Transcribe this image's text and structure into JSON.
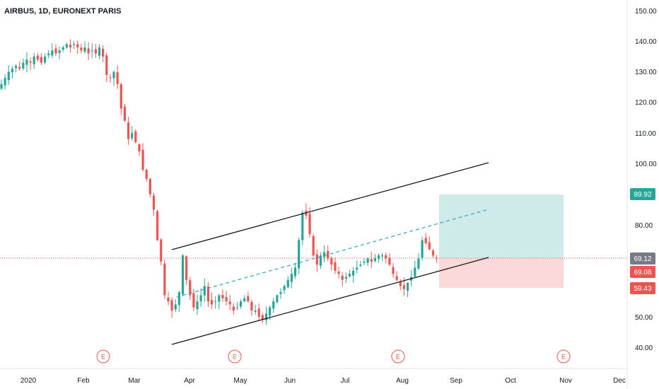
{
  "chart_data": {
    "type": "candlestick",
    "title": "AIRBUS, 1D, EURONEXT PARIS",
    "ylim": [
      33,
      153
    ],
    "y_ticks": [
      "150.00",
      "140.00",
      "130.00",
      "120.00",
      "110.00",
      "100.00",
      "80.00",
      "50.00",
      "40.00"
    ],
    "x_ticks": [
      "2020",
      "Feb",
      "Mar",
      "Apr",
      "May",
      "Jun",
      "Jul",
      "Aug",
      "Sep",
      "Oct",
      "Nov",
      "Dec"
    ],
    "colors": {
      "up": "#26a69a",
      "down": "#ef5350",
      "text": "#131722"
    },
    "price_tags": [
      {
        "value": "89.92",
        "color": "#26a69a"
      },
      {
        "value": "69.12",
        "color": "#787b86"
      },
      {
        "value": "69.08",
        "color": "#ef5350"
      },
      {
        "value": "59.43",
        "color": "#ef5350"
      }
    ],
    "current_price": 69.12,
    "earnings_markers": [
      "E",
      "E",
      "E",
      "E"
    ],
    "position": {
      "type": "long",
      "entry": 69.08,
      "target": 89.92,
      "stop": 59.43
    },
    "channel": {
      "upper": [
        [
          73,
          100.5
        ]
      ],
      "lower": [
        [
          41.5,
          69.5
        ]
      ],
      "mid": [
        [
          57,
          85
        ]
      ]
    },
    "closes": [
      126,
      128,
      130,
      131,
      132,
      131,
      133,
      134,
      133,
      135,
      134,
      133,
      135,
      136,
      137,
      136,
      137,
      138,
      139,
      138,
      139,
      138,
      137,
      138,
      136,
      137,
      136,
      138,
      135,
      129,
      128,
      130,
      126,
      118,
      114,
      108,
      110,
      107,
      104,
      98,
      95,
      90,
      85,
      75,
      68,
      57,
      55,
      52,
      54,
      58,
      70,
      62,
      57,
      53,
      55,
      57,
      60,
      55,
      54,
      55,
      57,
      56,
      55,
      54,
      52,
      53,
      55,
      56,
      55,
      52,
      52,
      50,
      49,
      51,
      53,
      55,
      57,
      58,
      60,
      62,
      64,
      66,
      75,
      84,
      83,
      77,
      70,
      67,
      70,
      71,
      69,
      67,
      65,
      64,
      62,
      63,
      64,
      65,
      66,
      67,
      68,
      69,
      68,
      69,
      70,
      70,
      69,
      67,
      64,
      62,
      60,
      59,
      61,
      63,
      66,
      69,
      75,
      74,
      72,
      70,
      69
    ]
  }
}
